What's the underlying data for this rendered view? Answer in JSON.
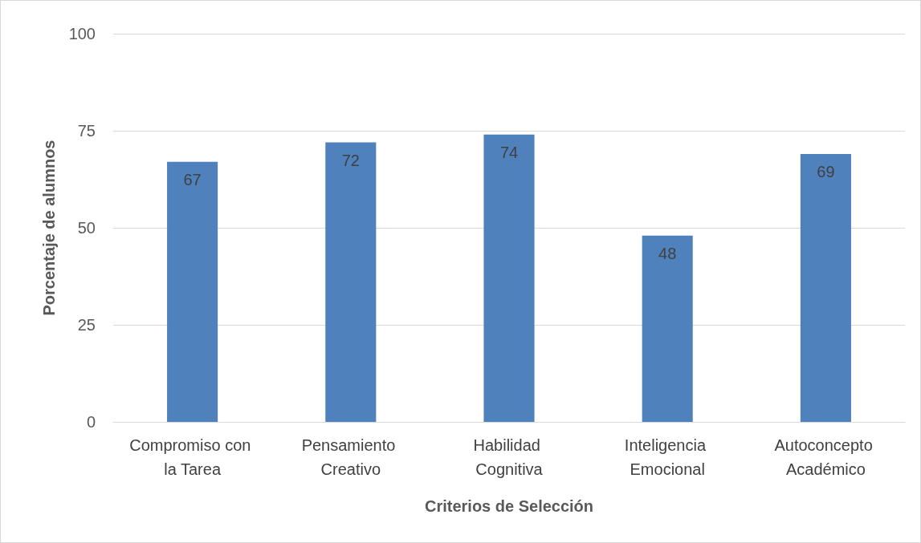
{
  "chart_data": {
    "type": "bar",
    "xlabel": "Criterios de Selección",
    "ylabel": "Porcentaje de alumnos",
    "categories": [
      "Compromiso con la Tarea",
      "Pensamiento Creativo",
      "Habilidad Cognitiva",
      "Inteligencia Emocional",
      "Autoconcepto Académico"
    ],
    "values": [
      67,
      72,
      74,
      48,
      69
    ],
    "color": "#4f81bd",
    "ylim": [
      0,
      100
    ],
    "yticks": [
      0,
      25,
      50,
      75,
      100
    ],
    "grid": "y",
    "data_labels": true
  }
}
